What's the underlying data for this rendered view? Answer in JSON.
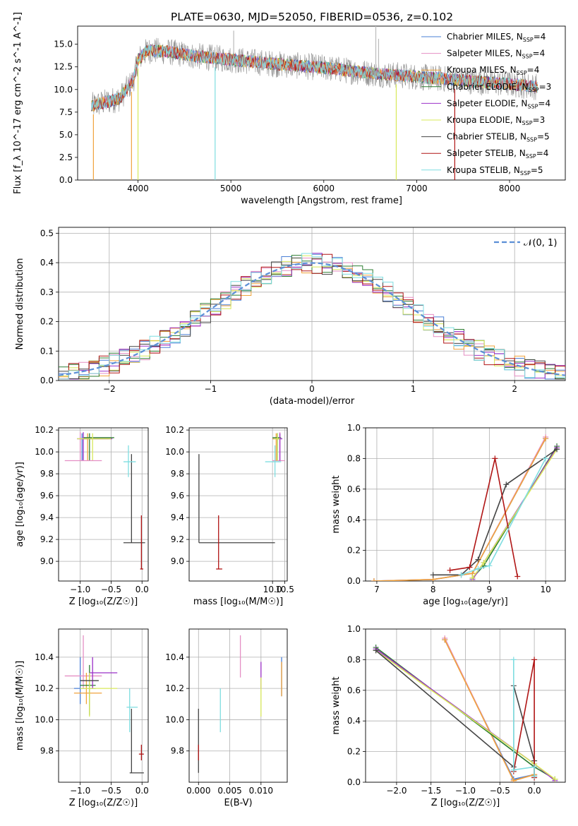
{
  "figure_title": "PLATE=0630, MJD=52050, FIBERID=0536, z=0.102",
  "colors": {
    "Chabrier MILES": "#4a7fd6",
    "Salpeter MILES": "#e58fc4",
    "Kroupa MILES": "#f0a33b",
    "Chabrier ELODIE": "#2e7d32",
    "Salpeter ELODIE": "#9b30c8",
    "Kroupa ELODIE": "#d8e85a",
    "Chabrier STELIB": "#444444",
    "Salpeter STELIB": "#b01515",
    "Kroupa STELIB": "#7fdde0",
    "data_spectrum": "#8c8c8c",
    "normal_curve": "#5b8fd6",
    "grid": "#b0b0b0"
  },
  "chart_data": [
    {
      "panel": "spectrum",
      "type": "line",
      "title": "PLATE=0630, MJD=52050, FIBERID=0536, z=0.102",
      "xlabel": "wavelength [Angstrom, rest frame]",
      "ylabel": "Flux [f_λ 10^-17 erg cm^-2 s^-1 A^-1]",
      "xlim": [
        3350,
        8600
      ],
      "ylim": [
        0,
        17
      ],
      "xticks": [
        4000,
        5000,
        6000,
        7000,
        8000
      ],
      "yticks": [
        0.0,
        2.5,
        5.0,
        7.5,
        10.0,
        12.5,
        15.0
      ],
      "grid": false,
      "legend_position": "top-right",
      "legend": [
        {
          "label": "Chabrier MILES, N",
          "sub": "SSP",
          "tail": "=4",
          "color_key": "Chabrier MILES"
        },
        {
          "label": "Salpeter MILES, N",
          "sub": "SSP",
          "tail": "=4",
          "color_key": "Salpeter MILES"
        },
        {
          "label": "Kroupa MILES, N",
          "sub": "SSP",
          "tail": "=4",
          "color_key": "Kroupa MILES"
        },
        {
          "label": "Chabrier ELODIE, N",
          "sub": "SSP",
          "tail": "=3",
          "color_key": "Chabrier ELODIE"
        },
        {
          "label": "Salpeter ELODIE, N",
          "sub": "SSP",
          "tail": "=4",
          "color_key": "Salpeter ELODIE"
        },
        {
          "label": "Kroupa ELODIE, N",
          "sub": "SSP",
          "tail": "=3",
          "color_key": "Kroupa ELODIE"
        },
        {
          "label": "Chabrier STELIB, N",
          "sub": "SSP",
          "tail": "=5",
          "color_key": "Chabrier STELIB"
        },
        {
          "label": "Salpeter STELIB, N",
          "sub": "SSP",
          "tail": "=4",
          "color_key": "Salpeter STELIB"
        },
        {
          "label": "Kroupa STELIB, N",
          "sub": "SSP",
          "tail": "=5",
          "color_key": "Kroupa STELIB"
        }
      ],
      "continuum_shape": {
        "x": [
          3500,
          3800,
          3950,
          4000,
          4100,
          4300,
          4600,
          5000,
          5500,
          6000,
          6500,
          7000,
          7500,
          8000,
          8300
        ],
        "y": [
          8.2,
          9.0,
          11.0,
          13.3,
          14.3,
          14.2,
          13.7,
          13.3,
          12.8,
          12.4,
          11.8,
          11.4,
          11.0,
          10.6,
          10.3
        ]
      },
      "absorption_spikes": [
        {
          "x": 3520,
          "ymin": 0,
          "color_key": "Kroupa MILES"
        },
        {
          "x": 3930,
          "ymin": 0,
          "color_key": "Kroupa MILES"
        },
        {
          "x": 4000,
          "ymin": 0,
          "color_key": "Kroupa ELODIE"
        },
        {
          "x": 4830,
          "ymin": 0,
          "color_key": "Kroupa STELIB"
        },
        {
          "x": 6780,
          "ymin": 0,
          "color_key": "Kroupa ELODIE"
        },
        {
          "x": 7410,
          "ymin": 0,
          "color_key": "Salpeter STELIB"
        }
      ],
      "emission_spikes": [
        {
          "x": 5030,
          "ymax": 16.5
        },
        {
          "x": 6560,
          "ymax": 17.0
        },
        {
          "x": 6590,
          "ymax": 15.6
        }
      ]
    },
    {
      "panel": "residuals",
      "type": "histogram",
      "xlabel": "(data-model)/error",
      "ylabel": "Normed distribution",
      "xlim": [
        -2.5,
        2.5
      ],
      "ylim": [
        0,
        0.52
      ],
      "xticks": [
        -2,
        -1,
        0,
        1,
        2
      ],
      "yticks": [
        0.0,
        0.1,
        0.2,
        0.3,
        0.4,
        0.5
      ],
      "grid": true,
      "legend_position": "top-right",
      "legend": [
        {
          "label": "𝒩(0, 1)",
          "color_key": "normal_curve",
          "style": "dashed"
        }
      ],
      "bin_width": 0.1,
      "bin_start": -2.5,
      "series_order": [
        "Chabrier MILES",
        "Salpeter MILES",
        "Kroupa MILES",
        "Chabrier ELODIE",
        "Salpeter ELODIE",
        "Kroupa ELODIE",
        "Chabrier STELIB",
        "Salpeter STELIB",
        "Kroupa STELIB"
      ]
    },
    {
      "panel": "age_vs_Z",
      "type": "errorbar",
      "xlabel": "Z [log₁₀(Z/Z☉)]",
      "ylabel": "age  [log₁₀(age/yr)]",
      "xlim": [
        -1.35,
        0.1
      ],
      "ylim": [
        8.82,
        10.22
      ],
      "xticks": [
        -1.0,
        -0.5,
        0.0
      ],
      "yticks": [
        9.0,
        9.2,
        9.4,
        9.6,
        9.8,
        10.0,
        10.2
      ],
      "grid": true,
      "points": [
        {
          "x": -0.97,
          "y": 10.12,
          "xlo": -1.0,
          "xhi": -0.5,
          "ylo": 9.92,
          "yhi": 10.17,
          "color_key": "Chabrier MILES"
        },
        {
          "x": -1.0,
          "y": 10.12,
          "xlo": -1.05,
          "xhi": -0.55,
          "ylo": 9.92,
          "yhi": 10.18,
          "color_key": "Salpeter MILES"
        },
        {
          "x": -0.88,
          "y": 10.12,
          "xlo": -0.95,
          "xhi": -0.5,
          "ylo": 9.92,
          "yhi": 10.17,
          "color_key": "Kroupa MILES"
        },
        {
          "x": -0.85,
          "y": 10.13,
          "xlo": -0.95,
          "xhi": -0.45,
          "ylo": 9.92,
          "yhi": 10.17,
          "color_key": "Chabrier ELODIE"
        },
        {
          "x": -0.95,
          "y": 10.12,
          "xlo": -1.05,
          "xhi": -0.48,
          "ylo": 9.92,
          "yhi": 10.18,
          "color_key": "Salpeter ELODIE"
        },
        {
          "x": -0.8,
          "y": 10.12,
          "xlo": -1.05,
          "xhi": -0.5,
          "ylo": 9.92,
          "yhi": 10.17,
          "color_key": "Kroupa ELODIE"
        },
        {
          "x": -0.17,
          "y": 9.17,
          "xlo": -0.3,
          "xhi": 0.05,
          "ylo": 9.17,
          "yhi": 9.98,
          "color_key": "Chabrier STELIB"
        },
        {
          "x": -0.01,
          "y": 8.93,
          "xlo": -0.03,
          "xhi": 0.02,
          "ylo": 8.93,
          "yhi": 9.42,
          "color_key": "Salpeter STELIB"
        },
        {
          "x": -0.22,
          "y": 9.91,
          "xlo": -0.3,
          "xhi": -0.1,
          "ylo": 9.77,
          "yhi": 10.06,
          "color_key": "Kroupa STELIB"
        },
        {
          "x": -0.95,
          "y": 9.92,
          "xlo": -1.25,
          "xhi": -0.65,
          "ylo": 9.92,
          "yhi": 9.92,
          "color_key": "Salpeter MILES"
        }
      ]
    },
    {
      "panel": "age_vs_mass",
      "type": "errorbar",
      "xlabel": "mass [log₁₀(M/M☉)]",
      "ylabel": "",
      "xlim": [
        6.6,
        10.6
      ],
      "ylim": [
        8.82,
        10.22
      ],
      "xticks": [
        10.0,
        10.5
      ],
      "yticks": [
        9.0,
        9.2,
        9.4,
        9.6,
        9.8,
        10.0,
        10.2
      ],
      "grid": true,
      "points": [
        {
          "x": 10.2,
          "y": 10.12,
          "xlo": 10.0,
          "xhi": 10.35,
          "ylo": 9.92,
          "yhi": 10.17,
          "color_key": "Chabrier MILES"
        },
        {
          "x": 10.3,
          "y": 9.92,
          "xlo": 10.0,
          "xhi": 10.5,
          "ylo": 9.92,
          "yhi": 10.18,
          "color_key": "Salpeter MILES"
        },
        {
          "x": 10.15,
          "y": 10.12,
          "xlo": 10.0,
          "xhi": 10.3,
          "ylo": 9.92,
          "yhi": 10.17,
          "color_key": "Kroupa MILES"
        },
        {
          "x": 10.2,
          "y": 10.13,
          "xlo": 10.0,
          "xhi": 10.35,
          "ylo": 9.92,
          "yhi": 10.17,
          "color_key": "Chabrier ELODIE"
        },
        {
          "x": 10.3,
          "y": 10.12,
          "xlo": 10.15,
          "xhi": 10.4,
          "ylo": 9.92,
          "yhi": 10.17,
          "color_key": "Salpeter ELODIE"
        },
        {
          "x": 10.2,
          "y": 10.12,
          "xlo": 10.05,
          "xhi": 10.3,
          "ylo": 9.92,
          "yhi": 10.17,
          "color_key": "Kroupa ELODIE"
        },
        {
          "x": 7.0,
          "y": 9.17,
          "xlo": 7.0,
          "xhi": 10.1,
          "ylo": 9.17,
          "yhi": 9.98,
          "color_key": "Chabrier STELIB"
        },
        {
          "x": 7.8,
          "y": 8.93,
          "xlo": 7.7,
          "xhi": 7.95,
          "ylo": 8.93,
          "yhi": 9.42,
          "color_key": "Salpeter STELIB"
        },
        {
          "x": 10.1,
          "y": 9.91,
          "xlo": 9.7,
          "xhi": 10.35,
          "ylo": 9.77,
          "yhi": 10.06,
          "color_key": "Kroupa STELIB"
        }
      ]
    },
    {
      "panel": "massweight_vs_age",
      "type": "line",
      "xlabel": "age  [log₁₀(age/yr)]",
      "ylabel": "mass weight",
      "xlim": [
        6.8,
        10.35
      ],
      "ylim": [
        0,
        1.0
      ],
      "xticks": [
        7,
        8,
        9,
        10
      ],
      "yticks": [
        0.0,
        0.2,
        0.4,
        0.6,
        0.8,
        1.0
      ],
      "grid": true,
      "series": [
        {
          "color_key": "Chabrier MILES",
          "x": [
            6.95,
            8.0,
            8.7,
            10.0
          ],
          "y": [
            0.0,
            0.01,
            0.05,
            0.93
          ]
        },
        {
          "color_key": "Salpeter MILES",
          "x": [
            6.95,
            8.0,
            8.7,
            10.0
          ],
          "y": [
            0.0,
            0.01,
            0.05,
            0.94
          ]
        },
        {
          "color_key": "Kroupa MILES",
          "x": [
            6.95,
            8.0,
            8.7,
            10.0
          ],
          "y": [
            0.0,
            0.01,
            0.05,
            0.93
          ]
        },
        {
          "color_key": "Chabrier ELODIE",
          "x": [
            8.7,
            8.9,
            10.2
          ],
          "y": [
            0.02,
            0.1,
            0.88
          ]
        },
        {
          "color_key": "Salpeter ELODIE",
          "x": [
            8.7,
            8.9,
            10.2
          ],
          "y": [
            0.01,
            0.12,
            0.87
          ]
        },
        {
          "color_key": "Kroupa ELODIE",
          "x": [
            8.7,
            8.9,
            10.2
          ],
          "y": [
            0.02,
            0.12,
            0.86
          ]
        },
        {
          "color_key": "Chabrier STELIB",
          "x": [
            8.0,
            8.5,
            8.8,
            9.3,
            10.2
          ],
          "y": [
            0.04,
            0.04,
            0.14,
            0.63,
            0.86
          ]
        },
        {
          "color_key": "Salpeter STELIB",
          "x": [
            8.3,
            8.65,
            9.1,
            9.5
          ],
          "y": [
            0.07,
            0.09,
            0.8,
            0.03
          ]
        },
        {
          "color_key": "Kroupa STELIB",
          "x": [
            8.5,
            8.8,
            9.0,
            10.0
          ],
          "y": [
            0.04,
            0.08,
            0.1,
            0.8
          ]
        }
      ]
    },
    {
      "panel": "mass_vs_Z",
      "type": "errorbar",
      "xlabel": "Z [log₁₀(Z/Z☉)]",
      "ylabel": "mass [log₁₀(M/M☉)]",
      "xlim": [
        -1.35,
        0.1
      ],
      "ylim": [
        9.6,
        10.58
      ],
      "xticks": [
        -1.0,
        -0.5,
        0.0
      ],
      "yticks": [
        9.8,
        10.0,
        10.2,
        10.4
      ],
      "grid": true,
      "points": [
        {
          "x": -1.0,
          "y": 10.2,
          "xlo": -1.1,
          "xhi": -0.75,
          "ylo": 10.1,
          "yhi": 10.4,
          "color_key": "Chabrier MILES"
        },
        {
          "x": -0.95,
          "y": 10.28,
          "xlo": -1.25,
          "xhi": -0.65,
          "ylo": 10.2,
          "yhi": 10.54,
          "color_key": "Salpeter MILES"
        },
        {
          "x": -0.9,
          "y": 10.17,
          "xlo": -1.1,
          "xhi": -0.65,
          "ylo": 10.1,
          "yhi": 10.3,
          "color_key": "Kroupa MILES"
        },
        {
          "x": -0.85,
          "y": 10.22,
          "xlo": -1.0,
          "xhi": -0.75,
          "ylo": 10.03,
          "yhi": 10.35,
          "color_key": "Chabrier ELODIE"
        },
        {
          "x": -0.8,
          "y": 10.3,
          "xlo": -0.85,
          "xhi": -0.4,
          "ylo": 10.2,
          "yhi": 10.4,
          "color_key": "Salpeter ELODIE"
        },
        {
          "x": -0.85,
          "y": 10.2,
          "xlo": -1.0,
          "xhi": -0.4,
          "ylo": 10.02,
          "yhi": 10.3,
          "color_key": "Kroupa ELODIE"
        },
        {
          "x": -0.17,
          "y": 9.66,
          "xlo": -0.2,
          "xhi": 0.03,
          "ylo": 9.66,
          "yhi": 10.07,
          "color_key": "Chabrier STELIB"
        },
        {
          "x": -0.01,
          "y": 9.78,
          "xlo": -0.05,
          "xhi": 0.03,
          "ylo": 9.74,
          "yhi": 9.84,
          "color_key": "Salpeter STELIB"
        },
        {
          "x": -0.2,
          "y": 10.08,
          "xlo": -0.25,
          "xhi": -0.07,
          "ylo": 9.92,
          "yhi": 10.2,
          "color_key": "Kroupa STELIB"
        },
        {
          "x": -0.95,
          "y": 10.25,
          "xlo": -1.0,
          "xhi": -0.7,
          "ylo": 10.25,
          "yhi": 10.25,
          "color_key": "Chabrier STELIB"
        }
      ]
    },
    {
      "panel": "mass_vs_EBV",
      "type": "errorbar",
      "xlabel": "E(B-V)",
      "ylabel": "",
      "xlim": [
        -0.0015,
        0.0142
      ],
      "ylim": [
        9.6,
        10.58
      ],
      "xticks": [
        0.0,
        0.005,
        0.01
      ],
      "xticklabels": [
        "0.000",
        "0.005",
        "0.010"
      ],
      "yticks": [
        9.8,
        10.0,
        10.2,
        10.4
      ],
      "grid": true,
      "points": [
        {
          "x": 0.0,
          "y": 9.8,
          "ylo": 9.66,
          "yhi": 10.07,
          "color_key": "Chabrier STELIB"
        },
        {
          "x": 0.0,
          "y": 9.78,
          "ylo": 9.74,
          "yhi": 9.84,
          "color_key": "Salpeter STELIB"
        },
        {
          "x": 0.0035,
          "y": 10.08,
          "ylo": 9.92,
          "yhi": 10.2,
          "color_key": "Kroupa STELIB"
        },
        {
          "x": 0.0067,
          "y": 10.4,
          "ylo": 10.27,
          "yhi": 10.54,
          "color_key": "Salpeter MILES"
        },
        {
          "x": 0.01,
          "y": 10.3,
          "ylo": 10.2,
          "yhi": 10.37,
          "color_key": "Salpeter ELODIE"
        },
        {
          "x": 0.01,
          "y": 10.15,
          "ylo": 10.02,
          "yhi": 10.27,
          "color_key": "Kroupa ELODIE"
        },
        {
          "x": 0.0133,
          "y": 10.2,
          "ylo": 10.15,
          "yhi": 10.4,
          "color_key": "Chabrier MILES"
        },
        {
          "x": 0.0133,
          "y": 10.27,
          "ylo": 10.15,
          "yhi": 10.37,
          "color_key": "Kroupa MILES"
        }
      ]
    },
    {
      "panel": "massweight_vs_Z",
      "type": "line",
      "xlabel": "Z [log₁₀(Z/Z☉)]",
      "ylabel": "mass weight",
      "xlim": [
        -2.45,
        0.45
      ],
      "ylim": [
        0,
        1.0
      ],
      "xticks": [
        -2.0,
        -1.5,
        -1.0,
        -0.5,
        0.0
      ],
      "yticks": [
        0.0,
        0.2,
        0.4,
        0.6,
        0.8,
        1.0
      ],
      "grid": true,
      "series": [
        {
          "color_key": "Chabrier MILES",
          "x": [
            -1.3,
            -0.3,
            0.0
          ],
          "y": [
            0.93,
            0.02,
            0.05
          ]
        },
        {
          "color_key": "Salpeter MILES",
          "x": [
            -1.3,
            -0.3,
            0.0
          ],
          "y": [
            0.94,
            0.01,
            0.05
          ]
        },
        {
          "color_key": "Kroupa MILES",
          "x": [
            -1.3,
            -0.3,
            0.0
          ],
          "y": [
            0.93,
            0.01,
            0.05
          ]
        },
        {
          "color_key": "Chabrier ELODIE",
          "x": [
            -2.3,
            0.0,
            0.3
          ],
          "y": [
            0.88,
            0.1,
            0.02
          ]
        },
        {
          "color_key": "Salpeter ELODIE",
          "x": [
            -2.3,
            0.0,
            0.3
          ],
          "y": [
            0.87,
            0.12,
            0.01
          ]
        },
        {
          "color_key": "Kroupa ELODIE",
          "x": [
            -2.3,
            0.0,
            0.3
          ],
          "y": [
            0.86,
            0.12,
            0.02
          ]
        },
        {
          "color_key": "Chabrier STELIB",
          "x": [
            -2.3,
            -0.3,
            -0.3,
            0.0,
            0.0
          ],
          "y": [
            0.86,
            0.1,
            0.63,
            0.14,
            0.04
          ]
        },
        {
          "color_key": "Salpeter STELIB",
          "x": [
            -0.3,
            0.0,
            0.0
          ],
          "y": [
            0.07,
            0.8,
            0.03
          ]
        },
        {
          "color_key": "Kroupa STELIB",
          "x": [
            -0.3,
            -0.3,
            0.0,
            0.0
          ],
          "y": [
            0.8,
            0.08,
            0.1,
            0.04
          ]
        }
      ]
    }
  ]
}
